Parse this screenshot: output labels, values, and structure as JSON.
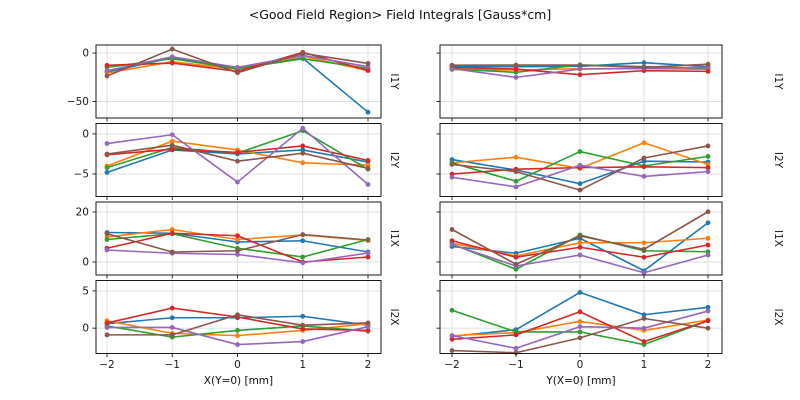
{
  "chart_data": {
    "type": "line",
    "title": "<Good Field Region> Field Integrals [Gauss*cm]",
    "units": "Gauss*cm",
    "legend": "none",
    "grid": true,
    "background": "#ffffff",
    "axis_color": "#1a1a1a",
    "grid_color": "#dcdcdc",
    "x": [
      -2,
      -1,
      0,
      1,
      2
    ],
    "xtick_labels": [
      "−2",
      "−1",
      "0",
      "1",
      "2"
    ],
    "series_colors": [
      "#1f77b4",
      "#ff7f0e",
      "#2ca02c",
      "#d62728",
      "#9467bd",
      "#8c564b"
    ],
    "series_color_names": [
      "blue",
      "orange",
      "green",
      "red",
      "purple",
      "brown"
    ],
    "columns": [
      {
        "xlabel": "X(Y=0) [mm]"
      },
      {
        "xlabel": "Y(X=0) [mm]"
      }
    ],
    "rows": [
      {
        "label": "I1Y",
        "yticks": [
          0,
          -50
        ],
        "ytick_labels": [
          "0",
          "−50"
        ],
        "ylim": [
          -67,
          8.3
        ]
      },
      {
        "label": "I2Y",
        "yticks": [
          0,
          -5
        ],
        "ytick_labels": [
          "0",
          "−5"
        ],
        "ylim": [
          -7.8,
          1.3
        ]
      },
      {
        "label": "I1X",
        "yticks": [
          20,
          0
        ],
        "ytick_labels": [
          "20",
          "0"
        ],
        "ylim": [
          -5.2,
          24
        ]
      },
      {
        "label": "I2X",
        "yticks": [
          5,
          0
        ],
        "ytick_labels": [
          "5",
          "0"
        ],
        "ylim": [
          -3.4,
          6.4
        ]
      }
    ],
    "subplots": [
      {
        "row": 0,
        "col": 0,
        "series": [
          [
            -19.6,
            -4.8,
            -16.1,
            -5.2,
            -61.0
          ],
          [
            -20.6,
            -8.9,
            -16.8,
            -3.1,
            -18.2
          ],
          [
            -14.8,
            -5.8,
            -16.1,
            -5.8,
            -15.8
          ],
          [
            -12.7,
            -10.3,
            -18.9,
            0.7,
            -17.9
          ],
          [
            -18.2,
            -3.8,
            -14.8,
            -2.4,
            -14.1
          ],
          [
            -23.7,
            4.1,
            -20.3,
            -0.3,
            -10.7
          ]
        ]
      },
      {
        "row": 0,
        "col": 1,
        "series": [
          [
            -14.0,
            -14.1,
            -13.7,
            -9.9,
            -14.1
          ],
          [
            -17.0,
            -17.5,
            -16.1,
            -16.1,
            -16.8
          ],
          [
            -16.5,
            -19.9,
            -12.2,
            -14.1,
            -15.8
          ],
          [
            -15.0,
            -16.5,
            -22.3,
            -18.2,
            -18.9
          ],
          [
            -16.0,
            -25.1,
            -16.5,
            -15.8,
            -14.8
          ],
          [
            -12.5,
            -12.4,
            -12.4,
            -14.8,
            -11.5
          ]
        ]
      },
      {
        "row": 1,
        "col": 0,
        "series": [
          [
            -4.8,
            -2.0,
            -2.5,
            -2.0,
            -3.5
          ],
          [
            -4.0,
            -0.9,
            -2.0,
            -3.6,
            -3.9
          ],
          [
            -4.2,
            -1.7,
            -2.4,
            0.4,
            -4.4
          ],
          [
            -2.6,
            -1.9,
            -2.3,
            -1.5,
            -3.3
          ],
          [
            -1.2,
            -0.1,
            -6.0,
            0.7,
            -6.3
          ],
          [
            -2.5,
            -1.4,
            -3.4,
            -2.4,
            -4.3
          ]
        ]
      },
      {
        "row": 1,
        "col": 1,
        "series": [
          [
            -3.2,
            -4.5,
            -6.2,
            -3.4,
            -3.5
          ],
          [
            -3.6,
            -2.9,
            -4.3,
            -1.1,
            -3.8
          ],
          [
            -3.6,
            -5.9,
            -2.2,
            -4.0,
            -2.8
          ],
          [
            -5.0,
            -4.4,
            -4.2,
            -4.1,
            -4.2
          ],
          [
            -5.4,
            -6.6,
            -3.9,
            -5.3,
            -4.7
          ],
          [
            -3.8,
            -4.7,
            -7.0,
            -3.0,
            -1.5
          ]
        ]
      },
      {
        "row": 2,
        "col": 0,
        "series": [
          [
            11.8,
            11.5,
            8.0,
            8.5,
            4.0
          ],
          [
            10.0,
            13.0,
            9.0,
            10.8,
            8.6
          ],
          [
            9.0,
            11.3,
            5.5,
            2.0,
            9.0
          ],
          [
            5.5,
            11.5,
            10.5,
            0.0,
            2.0
          ],
          [
            4.8,
            3.5,
            3.0,
            -0.3,
            3.6
          ],
          [
            11.3,
            4.0,
            4.5,
            11.0,
            8.8
          ]
        ]
      },
      {
        "row": 2,
        "col": 1,
        "series": [
          [
            6.2,
            3.5,
            9.5,
            -3.5,
            15.7
          ],
          [
            7.5,
            2.4,
            7.7,
            7.7,
            9.5
          ],
          [
            7.2,
            -2.9,
            10.8,
            4.5,
            4.1
          ],
          [
            8.5,
            1.9,
            5.9,
            1.9,
            6.8
          ],
          [
            7.0,
            -1.6,
            2.8,
            -4.3,
            2.8
          ],
          [
            13.0,
            -0.9,
            10.4,
            5.1,
            20.1
          ]
        ]
      },
      {
        "row": 3,
        "col": 0,
        "series": [
          [
            0.6,
            1.4,
            1.4,
            1.6,
            0.4
          ],
          [
            1.0,
            -0.7,
            -1.0,
            -0.3,
            0.6
          ],
          [
            0.3,
            -1.2,
            -0.3,
            0.3,
            -0.4
          ],
          [
            0.7,
            2.7,
            1.5,
            -0.1,
            -0.3
          ],
          [
            0.1,
            0.1,
            -2.2,
            -1.8,
            0.2
          ],
          [
            -0.9,
            -0.9,
            1.8,
            0.4,
            0.7
          ]
        ]
      },
      {
        "row": 3,
        "col": 1,
        "series": [
          [
            -1.1,
            -0.2,
            4.8,
            1.8,
            2.8
          ],
          [
            -1.0,
            -0.6,
            0.9,
            -0.3,
            1.1
          ],
          [
            2.4,
            -0.5,
            -0.5,
            -2.2,
            1.0
          ],
          [
            -1.5,
            -0.9,
            2.2,
            -1.8,
            1.0
          ],
          [
            -1.0,
            -2.7,
            0.2,
            0.0,
            2.3
          ],
          [
            -3.0,
            -3.3,
            -1.3,
            1.3,
            0.0
          ]
        ]
      }
    ]
  }
}
